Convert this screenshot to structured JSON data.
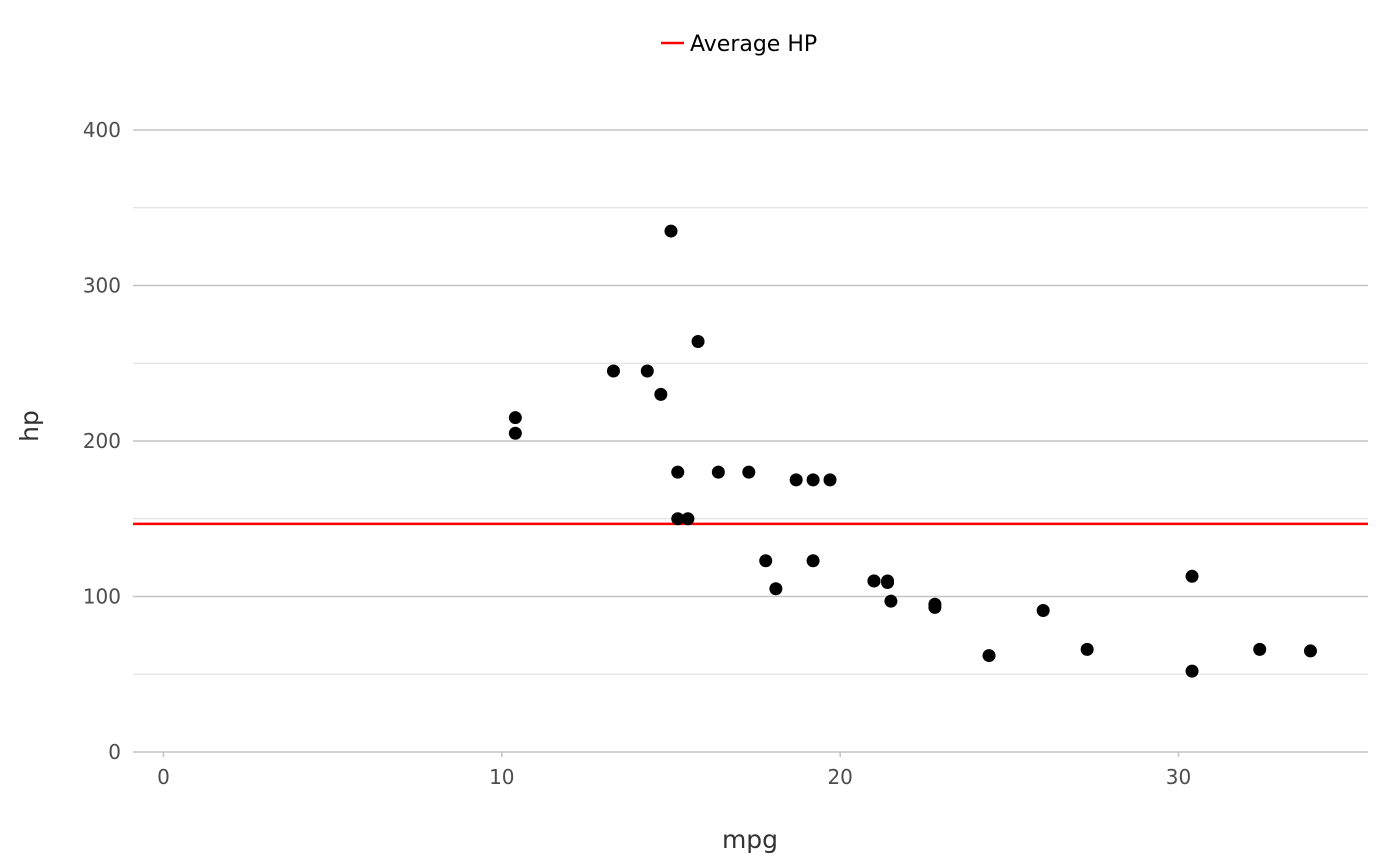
{
  "chart_data": {
    "type": "scatter",
    "xlabel": "mpg",
    "ylabel": "hp",
    "xlim": [
      -0.9,
      35.6
    ],
    "ylim": [
      0,
      400
    ],
    "x_ticks": [
      0,
      10,
      20,
      30
    ],
    "y_ticks": [
      0,
      100,
      200,
      300,
      400
    ],
    "grid": "horizontal",
    "legend_position": "top",
    "colors": {
      "points": "#000000",
      "reference_line": "#ff0000",
      "grid_major": "#c4c4c4",
      "grid_minor": "#dedede"
    },
    "reference_line": {
      "name": "Average HP",
      "y": 146.7
    },
    "points": [
      {
        "x": 21.0,
        "y": 110
      },
      {
        "x": 21.0,
        "y": 110
      },
      {
        "x": 22.8,
        "y": 93
      },
      {
        "x": 21.4,
        "y": 110
      },
      {
        "x": 18.7,
        "y": 175
      },
      {
        "x": 18.1,
        "y": 105
      },
      {
        "x": 14.3,
        "y": 245
      },
      {
        "x": 24.4,
        "y": 62
      },
      {
        "x": 22.8,
        "y": 95
      },
      {
        "x": 19.2,
        "y": 123
      },
      {
        "x": 17.8,
        "y": 123
      },
      {
        "x": 16.4,
        "y": 180
      },
      {
        "x": 17.3,
        "y": 180
      },
      {
        "x": 15.2,
        "y": 180
      },
      {
        "x": 10.4,
        "y": 205
      },
      {
        "x": 10.4,
        "y": 215
      },
      {
        "x": 14.7,
        "y": 230
      },
      {
        "x": 32.4,
        "y": 66
      },
      {
        "x": 30.4,
        "y": 52
      },
      {
        "x": 33.9,
        "y": 65
      },
      {
        "x": 21.5,
        "y": 97
      },
      {
        "x": 15.5,
        "y": 150
      },
      {
        "x": 15.2,
        "y": 150
      },
      {
        "x": 13.3,
        "y": 245
      },
      {
        "x": 19.2,
        "y": 175
      },
      {
        "x": 27.3,
        "y": 66
      },
      {
        "x": 26.0,
        "y": 91
      },
      {
        "x": 30.4,
        "y": 113
      },
      {
        "x": 15.8,
        "y": 264
      },
      {
        "x": 19.7,
        "y": 175
      },
      {
        "x": 15.0,
        "y": 335
      },
      {
        "x": 21.4,
        "y": 109
      }
    ]
  }
}
